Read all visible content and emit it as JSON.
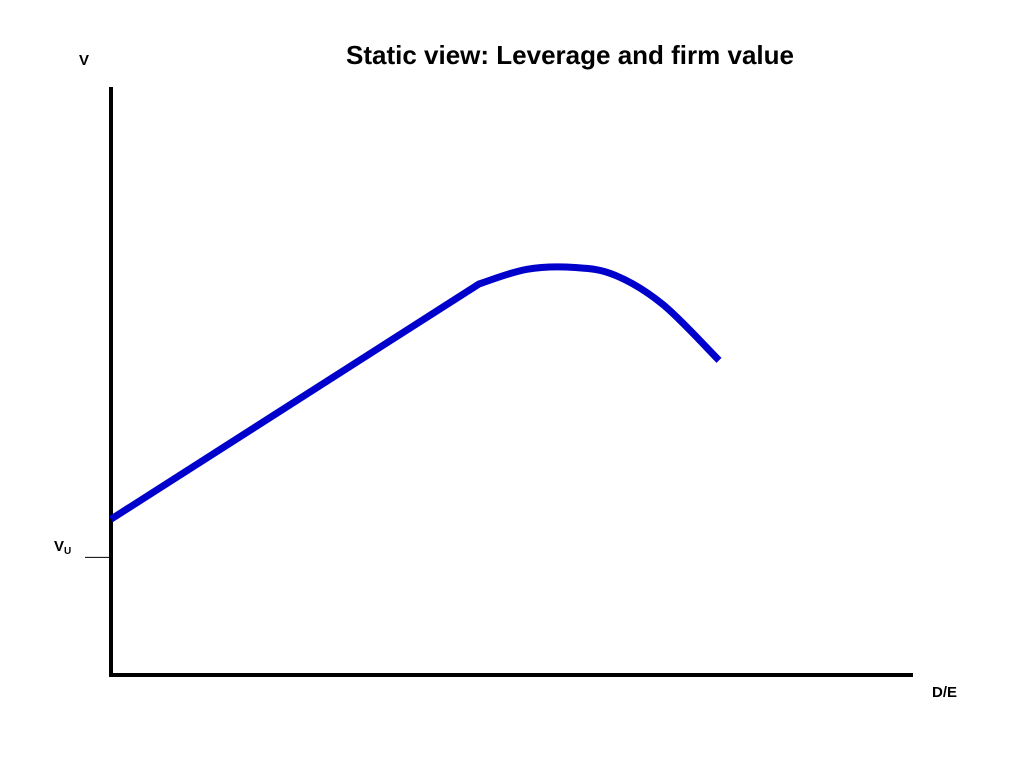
{
  "chart_data": {
    "type": "line",
    "title": "Static view: Leverage and firm value",
    "ylabel": "V",
    "xlabel": "D/E",
    "annotations": [
      {
        "id": "vu",
        "main": "V",
        "sub": "U",
        "y": 0.2
      }
    ],
    "xlim": [
      0,
      1
    ],
    "ylim": [
      0,
      1
    ],
    "grid": false,
    "legend": "none",
    "series": [
      {
        "color": "#0000cc",
        "points": [
          {
            "x": 0.0,
            "y": 0.265
          },
          {
            "x": 0.46,
            "y": 0.665
          },
          {
            "x": 0.52,
            "y": 0.69
          },
          {
            "x": 0.58,
            "y": 0.693
          },
          {
            "x": 0.63,
            "y": 0.68
          },
          {
            "x": 0.69,
            "y": 0.63
          },
          {
            "x": 0.76,
            "y": 0.535
          }
        ]
      }
    ]
  }
}
